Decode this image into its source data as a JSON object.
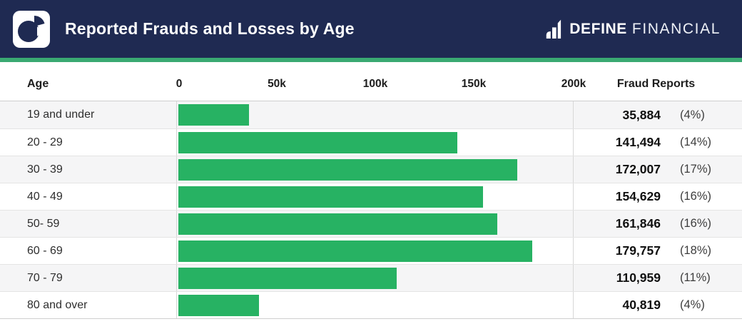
{
  "header": {
    "title": "Reported Frauds and Losses by Age",
    "brand": {
      "name_bold": "DEFINE",
      "name_light": "FINANCIAL"
    }
  },
  "table": {
    "age_header": "Age",
    "reports_header": "Fraud Reports",
    "axis_ticks": [
      "0",
      "50k",
      "100k",
      "150k",
      "200k"
    ]
  },
  "colors": {
    "header_navy": "#1f2a52",
    "accent_strip_green": "#3aa972",
    "bar_green": "#27b263",
    "row_alt_gray": "#f5f5f6"
  },
  "chart_data": {
    "type": "bar",
    "orientation": "horizontal",
    "title": "Reported Frauds and Losses by Age",
    "categories": [
      "19 and under",
      "20 - 29",
      "30 - 39",
      "40 - 49",
      "50- 59",
      "60 - 69",
      "70 - 79",
      "80 and over"
    ],
    "values": [
      35884,
      141494,
      172007,
      154629,
      161846,
      179757,
      110959,
      40819
    ],
    "value_labels": [
      "35,884",
      "141,494",
      "172,007",
      "154,629",
      "161,846",
      "179,757",
      "110,959",
      "40,819"
    ],
    "percent_labels": [
      "(4%)",
      "(14%)",
      "(17%)",
      "(16%)",
      "(16%)",
      "(18%)",
      "(11%)",
      "(4%)"
    ],
    "xlim": [
      0,
      200000
    ],
    "x_tick_labels": [
      "0",
      "50k",
      "100k",
      "150k",
      "200k"
    ],
    "column_headers": [
      "Age",
      "Fraud Reports"
    ],
    "grid": false,
    "legend": false
  }
}
